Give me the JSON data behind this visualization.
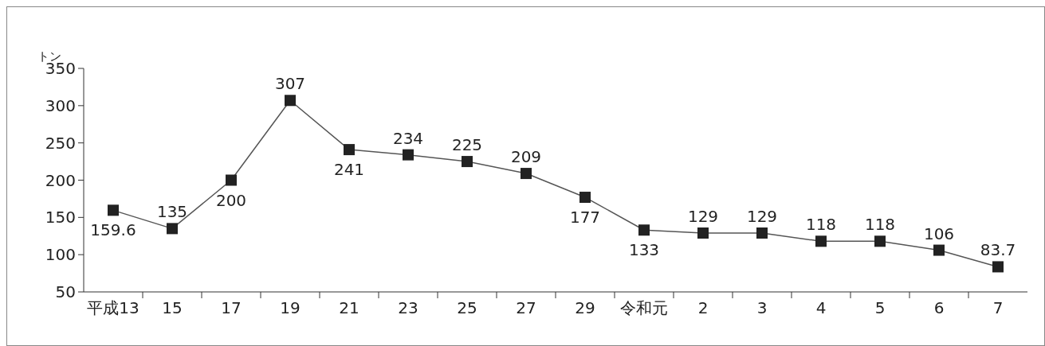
{
  "chart_data": {
    "type": "line",
    "ylabel": "トン",
    "categories": [
      "平成13",
      "15",
      "17",
      "19",
      "21",
      "23",
      "25",
      "27",
      "29",
      "令和元",
      "2",
      "3",
      "4",
      "5",
      "6",
      "7"
    ],
    "series": [
      {
        "color": "#222222",
        "values": [
          159.6,
          135,
          200,
          307,
          241,
          234,
          225,
          209,
          177,
          133,
          129,
          129,
          118,
          118,
          106,
          83.7
        ]
      }
    ],
    "ylim": [
      50,
      350
    ],
    "yticks": [
      50,
      100,
      150,
      200,
      250,
      300,
      350
    ],
    "marker": "square",
    "line_style": "solid",
    "data_labels": true,
    "grid": false
  }
}
